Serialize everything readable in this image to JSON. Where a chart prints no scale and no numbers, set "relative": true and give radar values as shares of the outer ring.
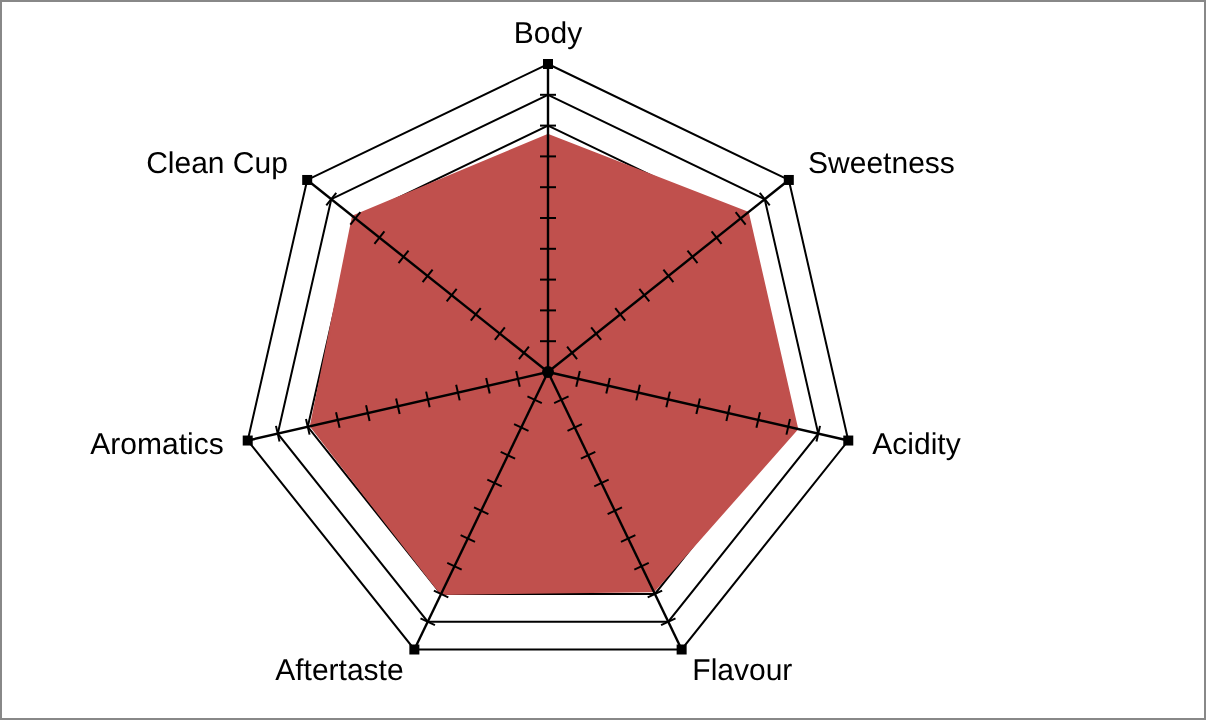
{
  "chart_data": {
    "type": "radar",
    "relative": true,
    "grid": true,
    "categories": [
      "Body",
      "Sweetness",
      "Acidity",
      "Flavour",
      "Aftertaste",
      "Aromatics",
      "Clean Cup"
    ],
    "series": [
      {
        "color": "#c0504d",
        "values": [
          0.77,
          0.83,
          0.83,
          0.79,
          0.8,
          0.79,
          0.81
        ]
      }
    ]
  }
}
